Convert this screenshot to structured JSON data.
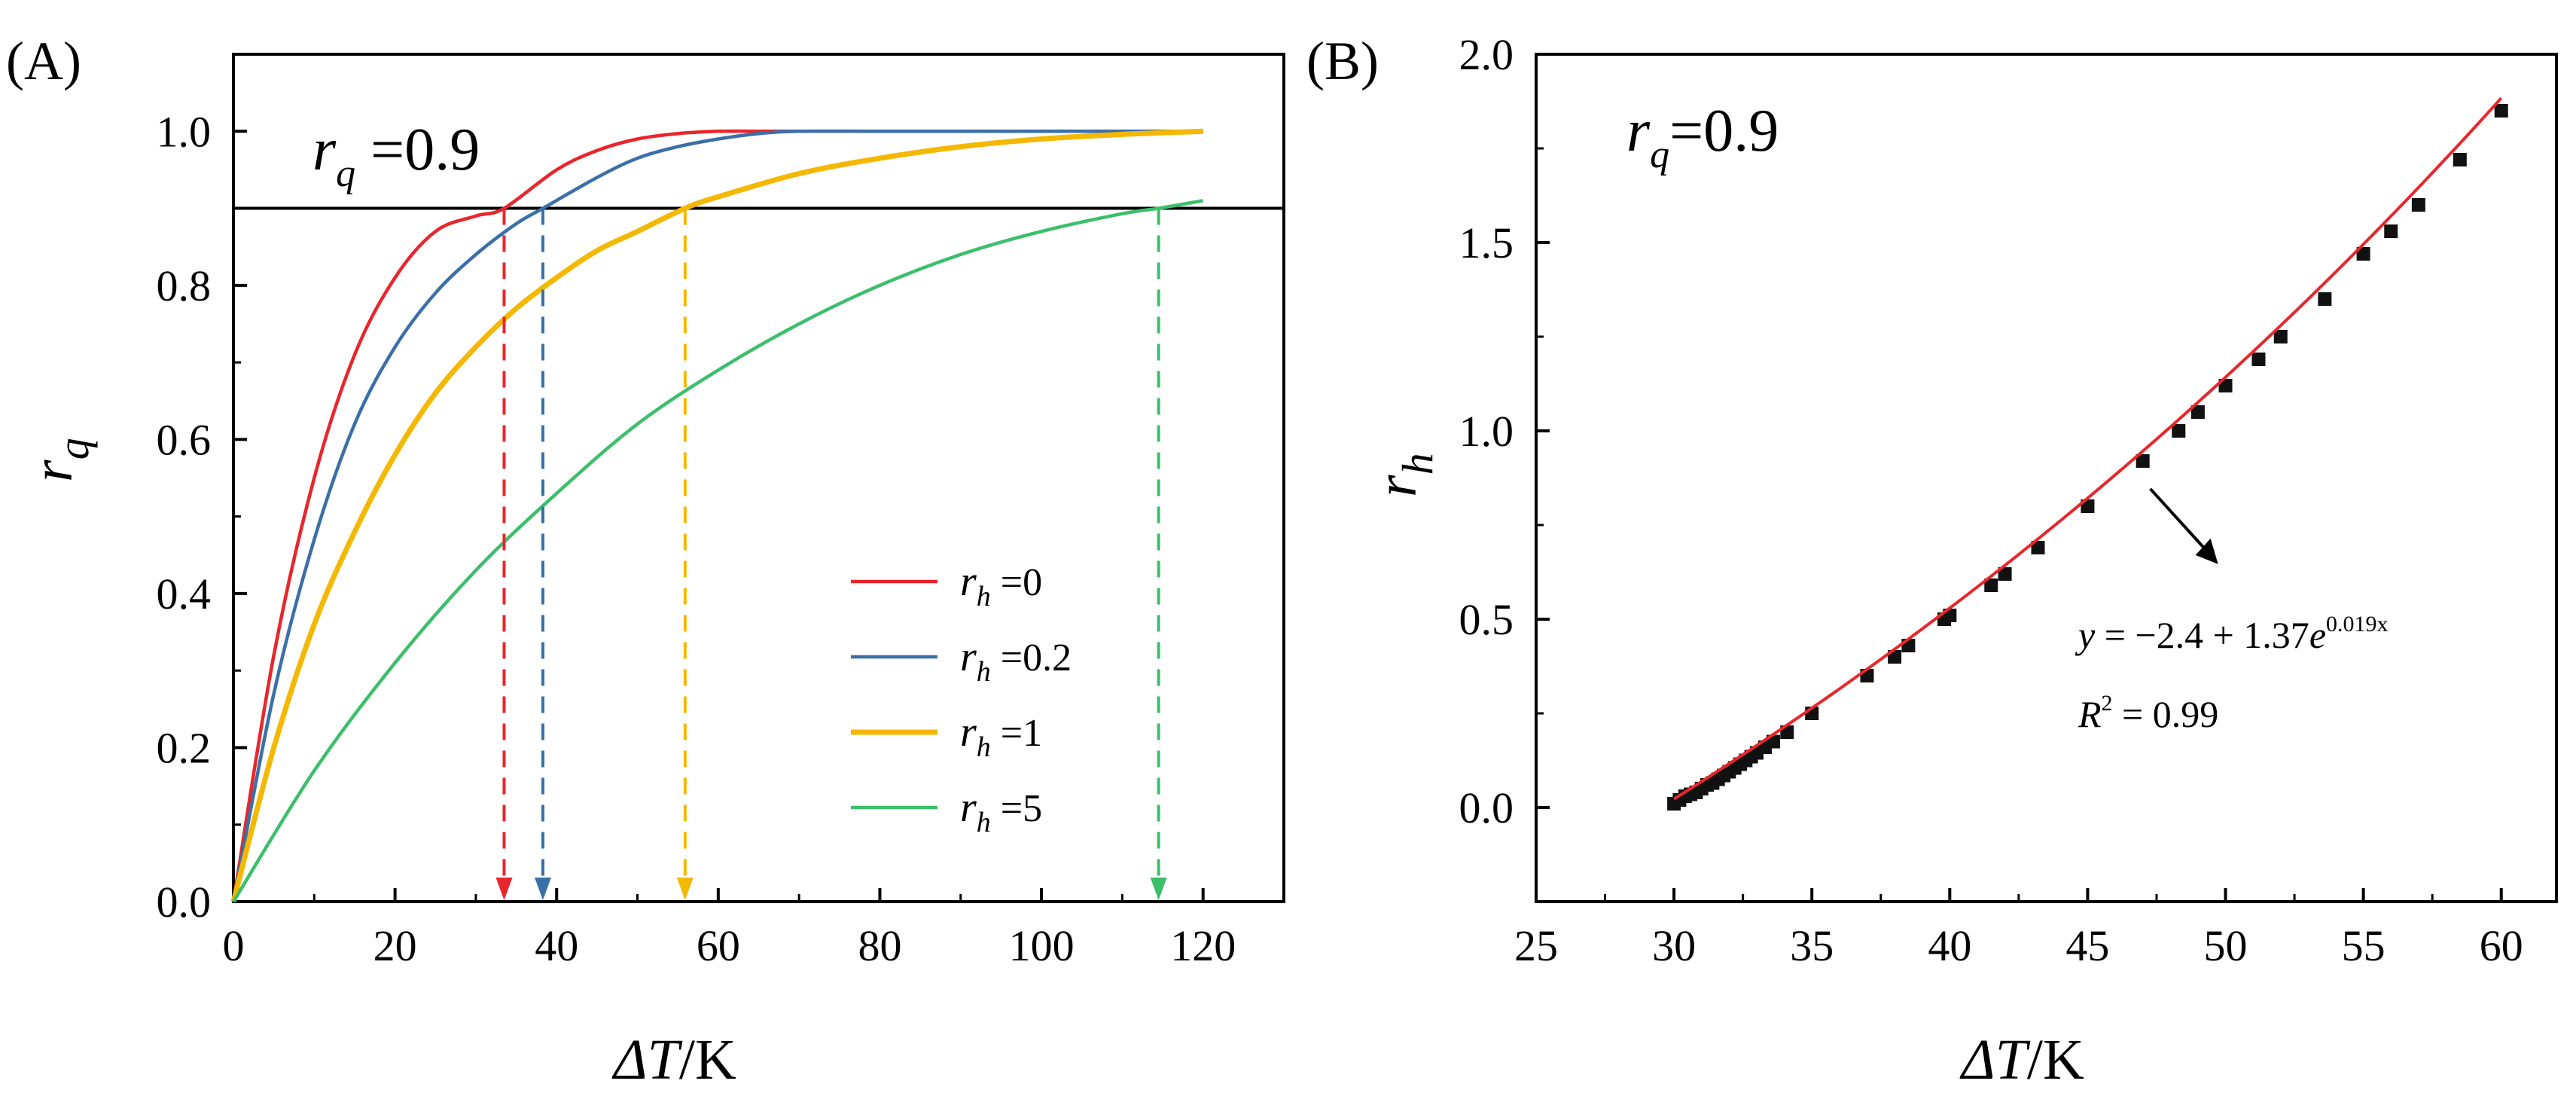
{
  "chart_data": [
    {
      "panel": "(A)",
      "type": "line",
      "title": "",
      "xlabel_parts": [
        "ΔT",
        "/K"
      ],
      "ylabel_parts": [
        "r",
        "q"
      ],
      "xlim": [
        0,
        130
      ],
      "ylim": [
        0,
        1.1
      ],
      "xticks": [
        0,
        20,
        40,
        60,
        80,
        100,
        120
      ],
      "yticks": [
        0.0,
        0.2,
        0.4,
        0.6,
        0.8,
        1.0
      ],
      "xtick_labels": [
        "0",
        "20",
        "40",
        "60",
        "80",
        "100",
        "120"
      ],
      "ytick_labels": [
        "0.0",
        "0.2",
        "0.4",
        "0.6",
        "0.8",
        "1.0"
      ],
      "annotation": {
        "symbol": "r",
        "sub": "q",
        "text": " =0.9"
      },
      "reference_line_y": 0.9,
      "legend_position": "bottom-right",
      "series": [
        {
          "name": "r_h =0",
          "legend_sym": "r",
          "legend_sub": "h",
          "legend_val": " =0",
          "color": "#e8262b",
          "x": [
            0,
            5,
            10,
            15,
            20,
            25,
            30,
            33.5,
            40,
            45,
            50,
            55,
            60,
            65,
            70,
            80,
            90,
            100,
            110,
            120
          ],
          "y": [
            0,
            0.32,
            0.55,
            0.71,
            0.81,
            0.87,
            0.89,
            0.9,
            0.95,
            0.975,
            0.99,
            0.997,
            1.0,
            1.0,
            1.0,
            1.0,
            1.0,
            1.0,
            1.0,
            1.0
          ]
        },
        {
          "name": "r_h =0.2",
          "legend_sym": "r",
          "legend_sub": "h",
          "legend_val": " =0.2",
          "color": "#3b6fa8",
          "x": [
            0,
            5,
            10,
            15,
            20,
            25,
            30,
            35,
            38.3,
            45,
            50,
            55,
            60,
            65,
            70,
            80,
            90,
            100,
            110,
            120
          ],
          "y": [
            0,
            0.27,
            0.47,
            0.62,
            0.72,
            0.79,
            0.84,
            0.88,
            0.9,
            0.94,
            0.965,
            0.98,
            0.99,
            0.997,
            1.0,
            1.0,
            1.0,
            1.0,
            1.0,
            1.0
          ],
          "marker_x": 38.3
        },
        {
          "name": "r_h =1",
          "legend_sym": "r",
          "legend_sub": "h",
          "legend_val": " =1",
          "color": "#f5b800",
          "x": [
            0,
            5,
            10,
            15,
            20,
            25,
            30,
            35,
            40,
            45,
            50,
            55.9,
            60,
            70,
            80,
            90,
            100,
            110,
            120
          ],
          "y": [
            0,
            0.2,
            0.36,
            0.48,
            0.58,
            0.66,
            0.72,
            0.77,
            0.81,
            0.845,
            0.87,
            0.9,
            0.915,
            0.945,
            0.965,
            0.98,
            0.99,
            0.996,
            1.0
          ],
          "marker_x": 55.9
        },
        {
          "name": "r_h =5",
          "legend_sym": "r",
          "legend_sub": "h",
          "legend_val": " =5",
          "color": "#3bbf6a",
          "x": [
            0,
            10,
            20,
            30,
            40,
            50,
            60,
            70,
            80,
            90,
            100,
            110,
            114.5,
            120
          ],
          "y": [
            0,
            0.17,
            0.31,
            0.43,
            0.53,
            0.62,
            0.69,
            0.75,
            0.8,
            0.84,
            0.87,
            0.893,
            0.9,
            0.91
          ],
          "marker_x": 114.5
        }
      ],
      "dashed_markers_x": [
        33.5,
        38.3,
        55.9,
        114.5
      ]
    },
    {
      "panel": "(B)",
      "type": "scatter",
      "title": "",
      "xlabel_parts": [
        "ΔT",
        "/K"
      ],
      "ylabel_parts": [
        "r",
        "h"
      ],
      "xlim": [
        25,
        62
      ],
      "ylim": [
        -0.25,
        2.0
      ],
      "xticks": [
        25,
        30,
        35,
        40,
        45,
        50,
        55,
        60
      ],
      "yticks": [
        0.0,
        0.5,
        1.0,
        1.5,
        2.0
      ],
      "xtick_labels": [
        "25",
        "30",
        "35",
        "40",
        "45",
        "50",
        "55",
        "60"
      ],
      "ytick_labels": [
        "0.0",
        "0.5",
        "1.0",
        "1.5",
        "2.0"
      ],
      "annotation": {
        "symbol": "r",
        "sub": "q",
        "text": "=0.9"
      },
      "points_x": [
        30.0,
        30.2,
        30.4,
        30.6,
        30.8,
        31.0,
        31.2,
        31.4,
        31.6,
        31.8,
        32.0,
        32.2,
        32.4,
        32.6,
        32.8,
        33.0,
        33.3,
        33.6,
        34.1,
        35.0,
        37.0,
        38.0,
        38.5,
        39.8,
        40.0,
        41.5,
        42.0,
        43.2,
        45.0,
        47.0,
        48.3,
        49.0,
        50.0,
        51.2,
        52.0,
        53.6,
        55.0,
        56.0,
        57.0,
        58.5,
        60.0
      ],
      "points_y": [
        0.01,
        0.02,
        0.03,
        0.035,
        0.04,
        0.05,
        0.06,
        0.065,
        0.075,
        0.085,
        0.095,
        0.105,
        0.115,
        0.125,
        0.135,
        0.145,
        0.16,
        0.175,
        0.2,
        0.25,
        0.35,
        0.4,
        0.43,
        0.5,
        0.51,
        0.59,
        0.62,
        0.69,
        0.8,
        0.92,
        1.0,
        1.05,
        1.12,
        1.19,
        1.25,
        1.35,
        1.47,
        1.53,
        1.6,
        1.72,
        1.85
      ],
      "fit": {
        "a": -2.4,
        "b": 1.37,
        "k": 0.019,
        "x_range": [
          30,
          60
        ],
        "color": "#e8262b"
      },
      "equation_y": {
        "lhs": "y",
        "rhs": " = −2.4 + 1.37",
        "base": "e",
        "exp": "0.019x"
      },
      "equation_r2": {
        "lhs": "R",
        "sup": "2",
        "rhs": " = 0.99"
      },
      "arrow_target_x": 47.0
    }
  ]
}
